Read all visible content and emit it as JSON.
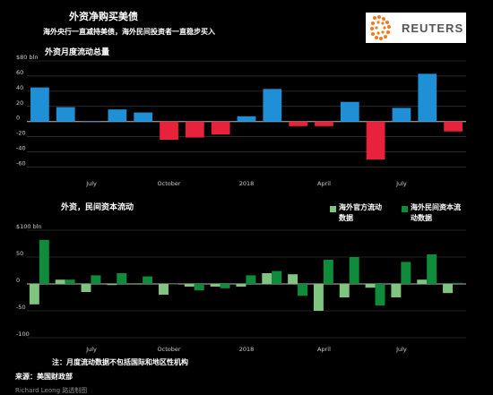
{
  "header": {
    "title": "外资净购买美债",
    "subtitle": "海外央行一直减持美债，海外民间投资者一直稳步买入",
    "logo_text": "REUTERS"
  },
  "chart_data": [
    {
      "type": "bar",
      "title": "外资月度流动总量",
      "unit": "$80 bln",
      "ylim": [
        -70,
        80
      ],
      "yticks": [
        80,
        60,
        40,
        20,
        0,
        -20,
        -40,
        -60
      ],
      "ytick_labels": [
        "$80 bln",
        "60",
        "40",
        "20",
        "0",
        "-20",
        "-40",
        "-60"
      ],
      "grid": true,
      "x_labels": [
        {
          "index": 2,
          "label": "July"
        },
        {
          "index": 5,
          "label": "October"
        },
        {
          "index": 8,
          "label": "2018"
        },
        {
          "index": 11,
          "label": "April"
        },
        {
          "index": 14,
          "label": "July"
        }
      ],
      "positive_color": "#1f8fd6",
      "negative_color": "#e8223a",
      "values": [
        45,
        19,
        0,
        16,
        12,
        -24,
        -21,
        -17,
        7,
        43,
        -6,
        -6,
        26,
        -50,
        18,
        63,
        -13
      ]
    },
    {
      "type": "bar",
      "title": "外资，民间资本流动",
      "unit": "$100 bln",
      "ylim": [
        -100,
        100
      ],
      "yticks": [
        100,
        50,
        0,
        -50,
        -100
      ],
      "ytick_labels": [
        "$100 bln",
        "50",
        "0",
        "-50",
        "-100"
      ],
      "grid": true,
      "x_labels": [
        {
          "index": 2,
          "label": "July"
        },
        {
          "index": 5,
          "label": "October"
        },
        {
          "index": 8,
          "label": "2018"
        },
        {
          "index": 11,
          "label": "April"
        },
        {
          "index": 14,
          "label": "July"
        }
      ],
      "legend_position": "top-right",
      "series": [
        {
          "name": "海外官方流动数据",
          "color": "#7fc47f",
          "values": [
            -38,
            8,
            -15,
            -2,
            1,
            -20,
            -5,
            -5,
            -5,
            20,
            18,
            -50,
            -25,
            -7,
            -25,
            8,
            -17
          ]
        },
        {
          "name": "海外民间资本流动数据",
          "color": "#0e8c3c",
          "values": [
            82,
            8,
            16,
            20,
            14,
            0,
            -12,
            -8,
            16,
            24,
            -22,
            45,
            50,
            -40,
            41,
            55,
            2
          ]
        }
      ]
    }
  ],
  "legend": {
    "official_line1": "海外官方流动",
    "official_line2": "数据",
    "private_line1": "海外民间资本流",
    "private_line2": "动数据"
  },
  "footer": {
    "note": "注：月度流动数据不包括国际和地区性机构",
    "source": "来源：美国财政部",
    "credit": "Richard Leong     路透制图"
  }
}
